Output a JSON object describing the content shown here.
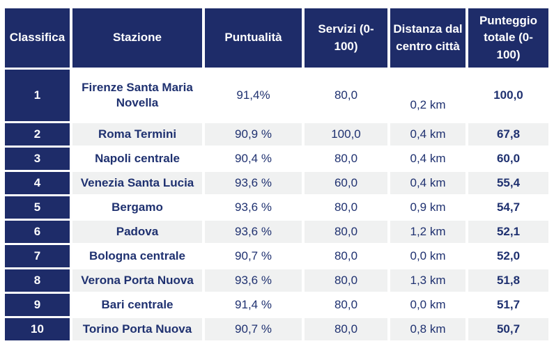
{
  "colors": {
    "header_bg": "#1e2c69",
    "header_text": "#ffffff",
    "body_text": "#1f3170",
    "stripe_bg": "#f0f1f1",
    "row_bg": "#ffffff"
  },
  "table": {
    "columns": {
      "rank": "Classifica",
      "station": "Stazione",
      "punctuality": "Puntualità",
      "services": "Servizi (0-\n100)",
      "distance": "Distanza dal\ncentro città",
      "total": "Punteggio\ntotale (0-\n100)"
    },
    "rows": [
      {
        "rank": "1",
        "station": "Firenze Santa Maria\nNovella",
        "punctuality": "91,4%",
        "services": "80,0",
        "distance": "0,2 km",
        "total": "100,0"
      },
      {
        "rank": "2",
        "station": "Roma Termini",
        "punctuality": "90,9 %",
        "services": "100,0",
        "distance": "0,4 km",
        "total": "67,8"
      },
      {
        "rank": "3",
        "station": "Napoli centrale",
        "punctuality": "90,4 %",
        "services": "80,0",
        "distance": "0,4 km",
        "total": "60,0"
      },
      {
        "rank": "4",
        "station": "Venezia Santa Lucia",
        "punctuality": "93,6 %",
        "services": "60,0",
        "distance": "0,4 km",
        "total": "55,4"
      },
      {
        "rank": "5",
        "station": "Bergamo",
        "punctuality": "93,6 %",
        "services": "80,0",
        "distance": "0,9 km",
        "total": "54,7"
      },
      {
        "rank": "6",
        "station": "Padova",
        "punctuality": "93,6 %",
        "services": "80,0",
        "distance": "1,2 km",
        "total": "52,1"
      },
      {
        "rank": "7",
        "station": "Bologna centrale",
        "punctuality": "90,7 %",
        "services": "80,0",
        "distance": "0,0 km",
        "total": "52,0"
      },
      {
        "rank": "8",
        "station": "Verona Porta Nuova",
        "punctuality": "93,6 %",
        "services": "80,0",
        "distance": "1,3 km",
        "total": "51,8"
      },
      {
        "rank": "9",
        "station": "Bari centrale",
        "punctuality": "91,4 %",
        "services": "80,0",
        "distance": "0,0 km",
        "total": "51,7"
      },
      {
        "rank": "10",
        "station": "Torino Porta Nuova",
        "punctuality": "90,7 %",
        "services": "80,0",
        "distance": "0,8 km",
        "total": "50,7"
      }
    ]
  }
}
